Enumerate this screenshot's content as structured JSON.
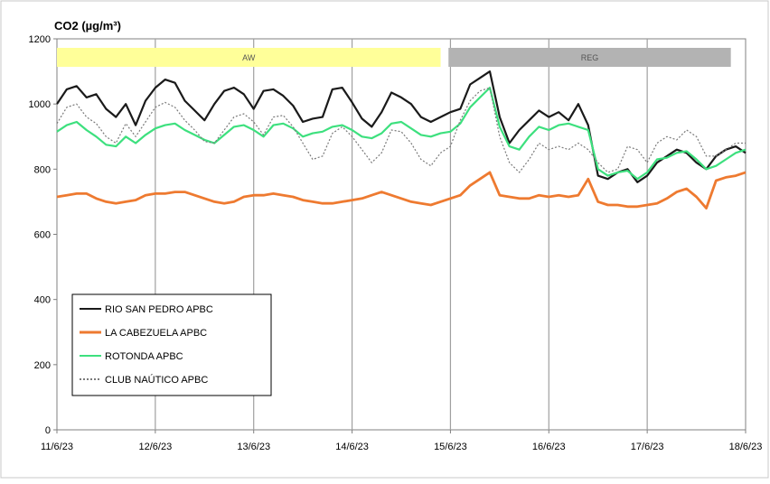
{
  "chart_data": {
    "type": "line",
    "title": "CO2 (µg/m³)",
    "xlabel": "",
    "ylabel": "",
    "ylim": [
      0,
      1200
    ],
    "y_ticks": [
      0,
      200,
      400,
      600,
      800,
      1000,
      1200
    ],
    "xlim": [
      0,
      7
    ],
    "x_tick_labels": [
      "11/6/23",
      "12/6/23",
      "13/6/23",
      "14/6/23",
      "15/6/23",
      "16/6/23",
      "17/6/23",
      "18/6/23"
    ],
    "grid": "vertical",
    "legend_position": "bottom-left",
    "periods": [
      {
        "label": "AW",
        "start": 0,
        "end": 3.9,
        "color": "#ffff99"
      },
      {
        "label": "REG",
        "start": 3.98,
        "end": 6.85,
        "color": "#b3b3b3"
      }
    ],
    "series": [
      {
        "name": "RIO SAN PEDRO APBC",
        "color": "#1a1a1a",
        "dash": "",
        "x": [
          0,
          0.1,
          0.2,
          0.3,
          0.4,
          0.5,
          0.6,
          0.7,
          0.8,
          0.9,
          1,
          1.1,
          1.2,
          1.3,
          1.4,
          1.5,
          1.6,
          1.7,
          1.8,
          1.9,
          2,
          2.1,
          2.2,
          2.3,
          2.4,
          2.5,
          2.6,
          2.7,
          2.8,
          2.9,
          3,
          3.1,
          3.2,
          3.3,
          3.4,
          3.5,
          3.6,
          3.7,
          3.8,
          3.9,
          4,
          4.1,
          4.2,
          4.3,
          4.4,
          4.5,
          4.6,
          4.7,
          4.8,
          4.9,
          5,
          5.1,
          5.2,
          5.3,
          5.4,
          5.5,
          5.6,
          5.7,
          5.8,
          5.9,
          6,
          6.1,
          6.2,
          6.3,
          6.4,
          6.5,
          6.6,
          6.7,
          6.8,
          6.9,
          7
        ],
        "y": [
          1000,
          1045,
          1055,
          1020,
          1030,
          985,
          960,
          1000,
          935,
          1010,
          1050,
          1075,
          1065,
          1010,
          980,
          950,
          1000,
          1040,
          1050,
          1030,
          985,
          1040,
          1045,
          1025,
          995,
          945,
          955,
          960,
          1045,
          1050,
          1005,
          955,
          930,
          975,
          1035,
          1020,
          1000,
          960,
          945,
          960,
          975,
          985,
          1060,
          1080,
          1100,
          960,
          880,
          920,
          950,
          980,
          960,
          975,
          950,
          1000,
          935,
          780,
          770,
          790,
          800,
          760,
          780,
          820,
          840,
          860,
          850,
          820,
          800,
          840,
          860,
          870,
          850
        ]
      },
      {
        "name": "LA CABEZUELA  APBC",
        "color": "#ee7a30",
        "dash": "",
        "x": [
          0,
          0.1,
          0.2,
          0.3,
          0.4,
          0.5,
          0.6,
          0.7,
          0.8,
          0.9,
          1,
          1.1,
          1.2,
          1.3,
          1.4,
          1.5,
          1.6,
          1.7,
          1.8,
          1.9,
          2,
          2.1,
          2.2,
          2.3,
          2.4,
          2.5,
          2.6,
          2.7,
          2.8,
          2.9,
          3,
          3.1,
          3.2,
          3.3,
          3.4,
          3.5,
          3.6,
          3.7,
          3.8,
          3.9,
          4,
          4.1,
          4.2,
          4.3,
          4.4,
          4.5,
          4.6,
          4.7,
          4.8,
          4.9,
          5,
          5.1,
          5.2,
          5.3,
          5.4,
          5.5,
          5.6,
          5.7,
          5.8,
          5.9,
          6,
          6.1,
          6.2,
          6.3,
          6.4,
          6.5,
          6.6,
          6.7,
          6.8,
          6.9,
          7
        ],
        "y": [
          715,
          720,
          725,
          725,
          710,
          700,
          695,
          700,
          705,
          720,
          725,
          725,
          730,
          730,
          720,
          710,
          700,
          695,
          700,
          715,
          720,
          720,
          725,
          720,
          715,
          705,
          700,
          695,
          695,
          700,
          705,
          710,
          720,
          730,
          720,
          710,
          700,
          695,
          690,
          700,
          710,
          720,
          750,
          770,
          790,
          720,
          715,
          710,
          710,
          720,
          715,
          720,
          715,
          720,
          770,
          700,
          690,
          690,
          685,
          685,
          690,
          695,
          710,
          730,
          740,
          715,
          680,
          765,
          775,
          780,
          790
        ]
      },
      {
        "name": "ROTONDA  APBC",
        "color": "#3de07e",
        "dash": "",
        "x": [
          0,
          0.1,
          0.2,
          0.3,
          0.4,
          0.5,
          0.6,
          0.7,
          0.8,
          0.9,
          1,
          1.1,
          1.2,
          1.3,
          1.4,
          1.5,
          1.6,
          1.7,
          1.8,
          1.9,
          2,
          2.1,
          2.2,
          2.3,
          2.4,
          2.5,
          2.6,
          2.7,
          2.8,
          2.9,
          3,
          3.1,
          3.2,
          3.3,
          3.4,
          3.5,
          3.6,
          3.7,
          3.8,
          3.9,
          4,
          4.1,
          4.2,
          4.3,
          4.4,
          4.5,
          4.6,
          4.7,
          4.8,
          4.9,
          5,
          5.1,
          5.2,
          5.3,
          5.4,
          5.5,
          5.6,
          5.7,
          5.8,
          5.9,
          6,
          6.1,
          6.2,
          6.3,
          6.4,
          6.5,
          6.6,
          6.7,
          6.8,
          6.9,
          7
        ],
        "y": [
          915,
          935,
          945,
          920,
          900,
          875,
          870,
          900,
          880,
          905,
          925,
          935,
          940,
          920,
          905,
          890,
          880,
          905,
          930,
          935,
          920,
          900,
          935,
          940,
          925,
          900,
          910,
          915,
          930,
          935,
          920,
          900,
          895,
          910,
          940,
          945,
          925,
          905,
          900,
          910,
          915,
          940,
          990,
          1020,
          1050,
          930,
          870,
          860,
          900,
          930,
          920,
          935,
          940,
          930,
          920,
          800,
          780,
          790,
          795,
          770,
          790,
          830,
          835,
          850,
          855,
          830,
          800,
          810,
          830,
          850,
          860
        ]
      },
      {
        "name": "CLUB NAÚTICO  APBC",
        "color": "#7a7a7a",
        "dash": "2,2",
        "x": [
          0,
          0.1,
          0.2,
          0.3,
          0.4,
          0.5,
          0.6,
          0.7,
          0.8,
          0.9,
          1,
          1.1,
          1.2,
          1.3,
          1.4,
          1.5,
          1.6,
          1.7,
          1.8,
          1.9,
          2,
          2.1,
          2.2,
          2.3,
          2.4,
          2.5,
          2.6,
          2.7,
          2.8,
          2.9,
          3,
          3.1,
          3.2,
          3.3,
          3.4,
          3.5,
          3.6,
          3.7,
          3.8,
          3.9,
          4,
          4.1,
          4.2,
          4.3,
          4.4,
          4.5,
          4.6,
          4.7,
          4.8,
          4.9,
          5,
          5.1,
          5.2,
          5.3,
          5.4,
          5.5,
          5.6,
          5.7,
          5.8,
          5.9,
          6,
          6.1,
          6.2,
          6.3,
          6.4,
          6.5,
          6.6,
          6.7,
          6.8,
          6.9,
          7
        ],
        "y": [
          940,
          990,
          1000,
          960,
          940,
          900,
          880,
          940,
          900,
          945,
          990,
          1005,
          990,
          950,
          920,
          885,
          880,
          920,
          960,
          970,
          945,
          905,
          960,
          965,
          930,
          880,
          830,
          840,
          910,
          930,
          900,
          860,
          820,
          850,
          920,
          915,
          880,
          830,
          810,
          850,
          870,
          950,
          1010,
          1040,
          1050,
          900,
          820,
          790,
          830,
          880,
          860,
          870,
          860,
          880,
          860,
          820,
          790,
          800,
          870,
          860,
          820,
          880,
          900,
          890,
          920,
          900,
          840,
          840,
          860,
          880,
          880
        ]
      }
    ]
  }
}
